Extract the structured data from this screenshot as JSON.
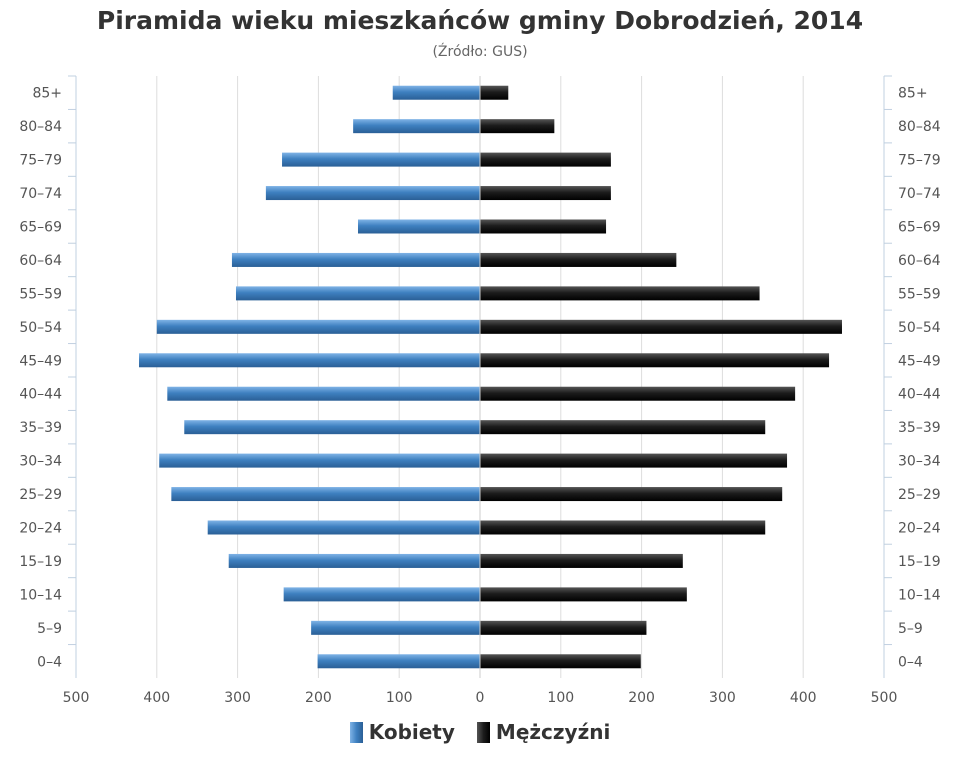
{
  "chart_data": {
    "type": "bar",
    "orientation": "horizontal-pyramid",
    "title": "Piramida wieku mieszkańców gminy Dobrodzień, 2014",
    "subtitle": "(Źródło: GUS)",
    "categories": [
      "85+",
      "80–84",
      "75–79",
      "70–74",
      "65–69",
      "60–64",
      "55–59",
      "50–54",
      "45–49",
      "40–44",
      "35–39",
      "30–34",
      "25–29",
      "20–24",
      "15–19",
      "10–14",
      "5–9",
      "0–4"
    ],
    "series": [
      {
        "name": "Kobiety",
        "color": "#3e80c0",
        "values": [
          108,
          157,
          245,
          265,
          151,
          307,
          302,
          400,
          422,
          387,
          366,
          397,
          382,
          337,
          311,
          243,
          209,
          201
        ]
      },
      {
        "name": "Mężczyźni",
        "color": "#1a1a1a",
        "values": [
          35,
          92,
          162,
          162,
          156,
          243,
          346,
          448,
          432,
          390,
          353,
          380,
          374,
          353,
          251,
          256,
          206,
          199
        ]
      }
    ],
    "x_ticks": [
      "500",
      "400",
      "300",
      "200",
      "100",
      "0",
      "100",
      "200",
      "300",
      "400",
      "500"
    ],
    "xlim": [
      -500,
      500
    ],
    "grid": true,
    "legend_position": "bottom"
  }
}
